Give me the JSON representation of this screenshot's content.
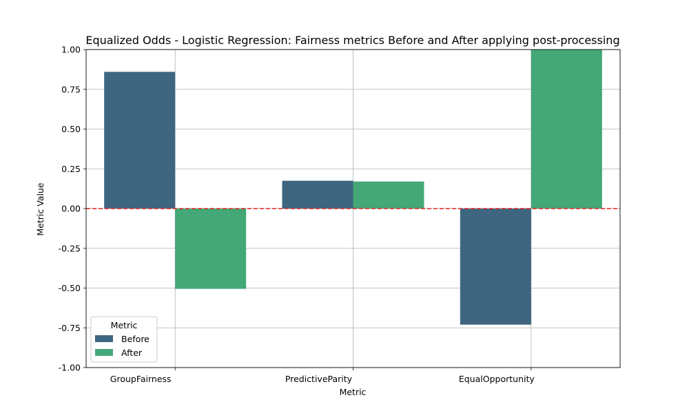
{
  "chart_data": {
    "type": "bar",
    "title": "Equalized Odds - Logistic Regression: Fairness metrics Before and After applying post-processing",
    "xlabel": "Metric",
    "ylabel": "Metric Value",
    "categories": [
      "GroupFairness",
      "PredictiveParity",
      "EqualOpportunity"
    ],
    "series": [
      {
        "name": "Before",
        "values": [
          0.86,
          0.175,
          -0.73
        ],
        "color": "#3e6681"
      },
      {
        "name": "After",
        "values": [
          -0.505,
          0.17,
          1.0
        ],
        "color": "#44a777"
      }
    ],
    "ylim": [
      -1.0,
      1.0
    ],
    "yticks": [
      "-1.00",
      "-0.75",
      "-0.50",
      "-0.25",
      "0.00",
      "0.25",
      "0.50",
      "0.75",
      "1.00"
    ],
    "grid": true,
    "reference_line": {
      "y": 0.0,
      "color": "#e8211c",
      "style": "dashed"
    },
    "legend": {
      "title": "Metric",
      "position": "lower-left"
    }
  }
}
